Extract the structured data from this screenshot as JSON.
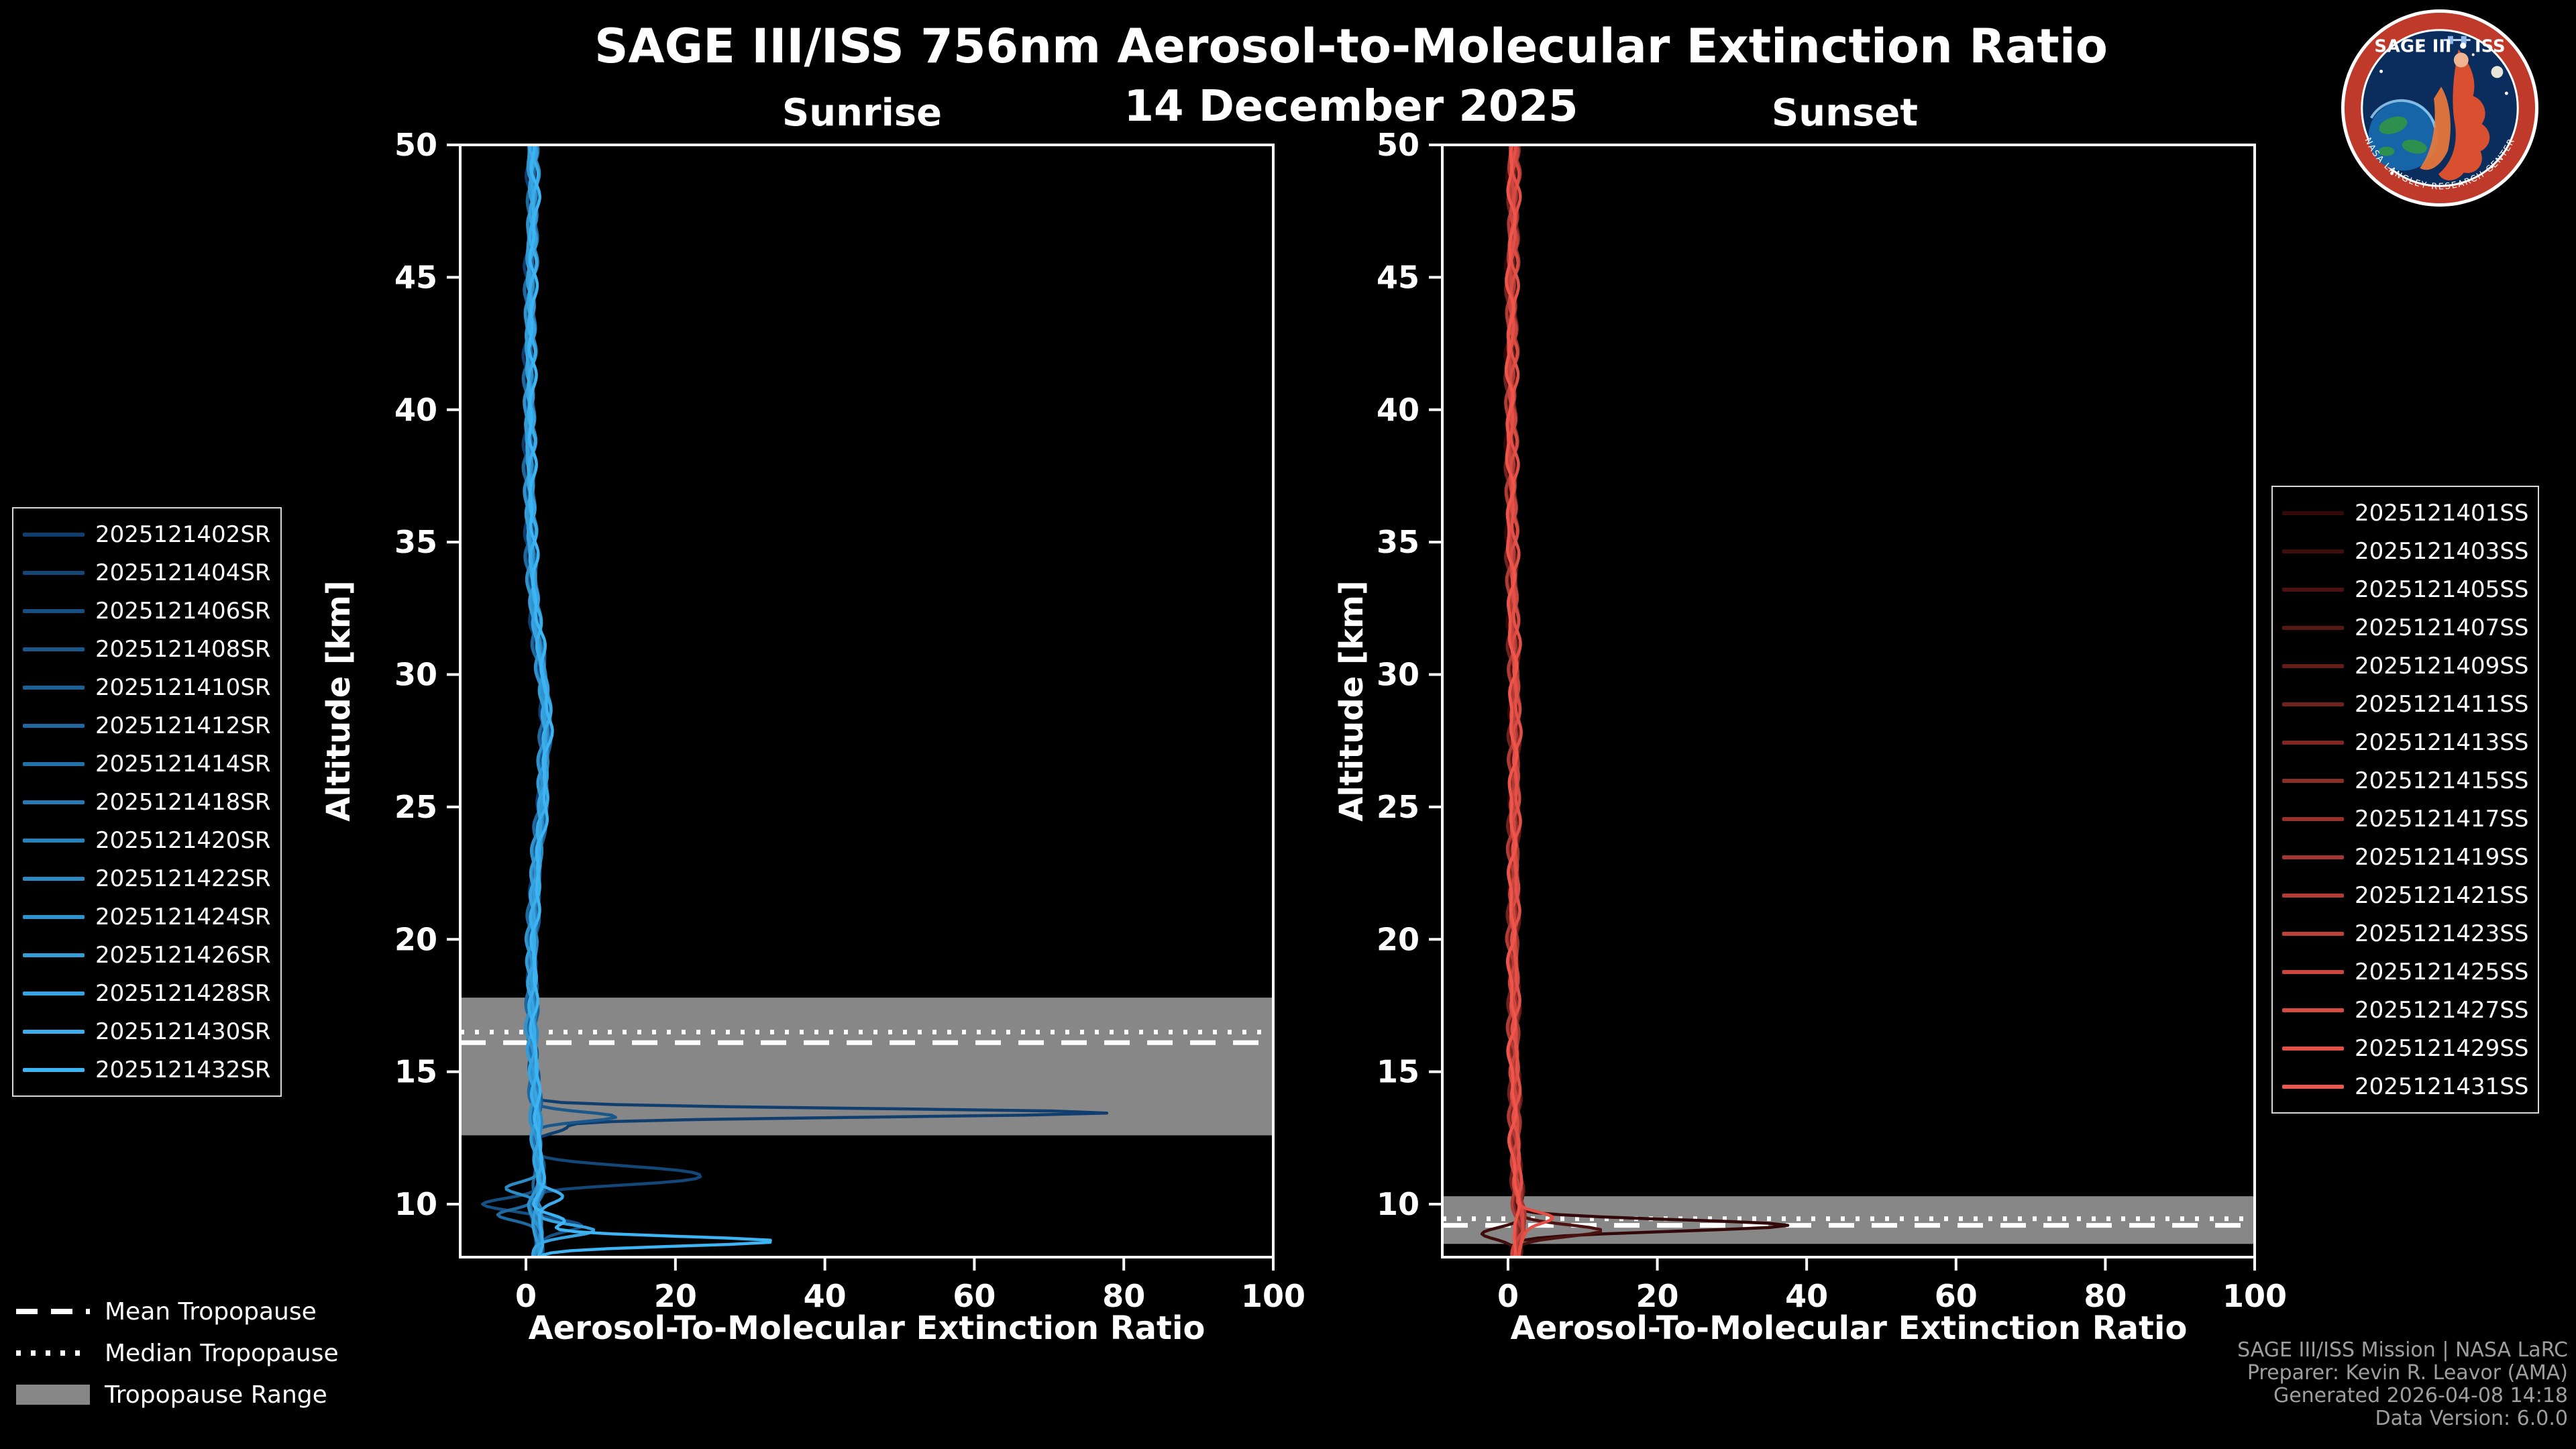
{
  "header": {
    "title": "SAGE III/ISS 756nm Aerosol-to-Molecular Extinction Ratio",
    "subtitle": "14 December 2025"
  },
  "logo": {
    "title_text": "SAGE III • ISS",
    "ring_text": "NASA LANGLEY RESEARCH CENTER",
    "colors": {
      "ring": "#bf3a2b",
      "inner": "#0a2d5e",
      "earth_ocean": "#1565a8",
      "earth_land": "#2f8f4e",
      "figure": "#d8502f"
    }
  },
  "tropopause_legend": {
    "mean_label": "Mean Tropopause",
    "median_label": "Median Tropopause",
    "range_label": "Tropopause Range",
    "range_color": "#878787"
  },
  "footer": {
    "lines": [
      "SAGE III/ISS Mission | NASA LaRC",
      "Preparer: Kevin R. Leavor (AMA)",
      "Generated 2026-04-08 14:18",
      "Data Version: 6.0.0"
    ]
  },
  "chart_data": [
    {
      "type": "line",
      "title": "Sunrise",
      "xlabel": "Aerosol-To-Molecular Extinction Ratio",
      "ylabel": "Altitude [km]",
      "xlim": [
        -8.8,
        100
      ],
      "ylim": [
        8,
        50
      ],
      "xticks": [
        0,
        20,
        40,
        60,
        80,
        100
      ],
      "yticks": [
        10,
        15,
        20,
        25,
        30,
        35,
        40,
        45,
        50
      ],
      "grid": false,
      "legend_position": "left",
      "tropopause": {
        "mean_km": 16.1,
        "median_km": 16.5,
        "range_km": [
          12.6,
          17.8
        ]
      },
      "base_profile": [
        [
          50,
          0.8
        ],
        [
          48,
          1.0
        ],
        [
          46,
          0.7
        ],
        [
          44,
          0.6
        ],
        [
          42,
          0.5
        ],
        [
          40,
          0.5
        ],
        [
          38,
          0.5
        ],
        [
          36,
          0.6
        ],
        [
          34,
          0.8
        ],
        [
          32,
          1.3
        ],
        [
          30,
          2.2
        ],
        [
          29,
          2.6
        ],
        [
          28,
          2.7
        ],
        [
          27,
          2.5
        ],
        [
          26,
          2.3
        ],
        [
          25,
          2.2
        ],
        [
          24,
          1.8
        ],
        [
          23,
          1.5
        ],
        [
          22,
          1.2
        ],
        [
          21,
          1.0
        ],
        [
          20,
          0.9
        ],
        [
          19,
          0.8
        ],
        [
          18,
          0.8
        ],
        [
          17,
          0.8
        ],
        [
          16,
          0.9
        ],
        [
          15,
          1.0
        ],
        [
          14,
          1.2
        ],
        [
          13.5,
          1.4
        ],
        [
          13,
          1.4
        ],
        [
          12.5,
          1.4
        ],
        [
          12,
          1.5
        ],
        [
          11.5,
          1.7
        ],
        [
          11,
          1.8
        ],
        [
          10.5,
          1.6
        ],
        [
          10,
          1.2
        ],
        [
          9.5,
          1.4
        ],
        [
          9,
          1.8
        ],
        [
          8.5,
          1.8
        ],
        [
          8,
          1.4
        ]
      ],
      "series": [
        {
          "name": "2025121402SR",
          "color": "#103E6E",
          "spikes": [
            {
              "alt": 13.45,
              "value": 78,
              "width": 0.22
            },
            {
              "alt": 12.9,
              "value": 6,
              "width": 0.3
            }
          ]
        },
        {
          "name": "2025121404SR",
          "color": "#134778",
          "spikes": [
            {
              "alt": 11.2,
              "value": 21,
              "width": 0.35
            },
            {
              "alt": 10.85,
              "value": 13,
              "width": 0.25
            }
          ]
        },
        {
          "name": "2025121406SR",
          "color": "#164F81",
          "spikes": [
            {
              "alt": 10.0,
              "value": -5.5,
              "width": 0.3
            },
            {
              "alt": 9.2,
              "value": 7,
              "width": 0.3
            }
          ]
        },
        {
          "name": "2025121408SR",
          "color": "#1A588B",
          "spikes": [
            {
              "alt": 13.3,
              "value": 12,
              "width": 0.25
            }
          ]
        },
        {
          "name": "2025121410SR",
          "color": "#1D6094",
          "spikes": []
        },
        {
          "name": "2025121412SR",
          "color": "#20699E",
          "spikes": [
            {
              "alt": 9.6,
              "value": -4,
              "width": 0.3
            }
          ]
        },
        {
          "name": "2025121414SR",
          "color": "#2371A7",
          "spikes": []
        },
        {
          "name": "2025121418SR",
          "color": "#277AB1",
          "spikes": []
        },
        {
          "name": "2025121420SR",
          "color": "#2A82BB",
          "spikes": []
        },
        {
          "name": "2025121422SR",
          "color": "#2D8BC4",
          "spikes": [
            {
              "alt": 10.6,
              "value": -2.5,
              "width": 0.3
            }
          ]
        },
        {
          "name": "2025121424SR",
          "color": "#3093CE",
          "spikes": []
        },
        {
          "name": "2025121426SR",
          "color": "#349CD7",
          "spikes": []
        },
        {
          "name": "2025121428SR",
          "color": "#37A4E1",
          "spikes": [
            {
              "alt": 9.0,
              "value": 9,
              "width": 0.3
            }
          ]
        },
        {
          "name": "2025121430SR",
          "color": "#3AADEA",
          "spikes": [
            {
              "alt": 10.3,
              "value": 5,
              "width": 0.35
            }
          ]
        },
        {
          "name": "2025121432SR",
          "color": "#3DB5F5",
          "spikes": [
            {
              "alt": 8.6,
              "value": 33,
              "width": 0.25
            },
            {
              "alt": 9.4,
              "value": 5,
              "width": 0.3
            }
          ]
        }
      ]
    },
    {
      "type": "line",
      "title": "Sunset",
      "xlabel": "Aerosol-To-Molecular Extinction Ratio",
      "ylabel": "Altitude [km]",
      "xlim": [
        -8.8,
        100
      ],
      "ylim": [
        8,
        50
      ],
      "xticks": [
        0,
        20,
        40,
        60,
        80,
        100
      ],
      "yticks": [
        10,
        15,
        20,
        25,
        30,
        35,
        40,
        45,
        50
      ],
      "grid": false,
      "legend_position": "right",
      "tropopause": {
        "mean_km": 9.2,
        "median_km": 9.45,
        "range_km": [
          8.5,
          10.3
        ]
      },
      "base_profile": [
        [
          50,
          0.7
        ],
        [
          48,
          0.8
        ],
        [
          46,
          0.6
        ],
        [
          44,
          0.5
        ],
        [
          42,
          0.5
        ],
        [
          40,
          0.4
        ],
        [
          38,
          0.5
        ],
        [
          36,
          0.5
        ],
        [
          34,
          0.6
        ],
        [
          32,
          0.7
        ],
        [
          30,
          0.9
        ],
        [
          28,
          0.9
        ],
        [
          26,
          0.9
        ],
        [
          24,
          0.8
        ],
        [
          22,
          0.8
        ],
        [
          20,
          0.7
        ],
        [
          18,
          0.8
        ],
        [
          16,
          0.8
        ],
        [
          14,
          0.9
        ],
        [
          12,
          1.0
        ],
        [
          11,
          1.1
        ],
        [
          10,
          1.4
        ],
        [
          9.5,
          1.6
        ],
        [
          9,
          1.8
        ],
        [
          8.5,
          1.3
        ],
        [
          8,
          1.0
        ]
      ],
      "series": [
        {
          "name": "2025121401SS",
          "color": "#320808",
          "spikes": [
            {
              "alt": 9.2,
              "value": 38,
              "width": 0.3
            }
          ]
        },
        {
          "name": "2025121403SS",
          "color": "#3F0D0C",
          "spikes": [
            {
              "alt": 8.9,
              "value": -3,
              "width": 0.3
            }
          ]
        },
        {
          "name": "2025121405SS",
          "color": "#4B1211",
          "spikes": [
            {
              "alt": 9.0,
              "value": 12,
              "width": 0.3
            }
          ]
        },
        {
          "name": "2025121407SS",
          "color": "#581715",
          "spikes": []
        },
        {
          "name": "2025121409SS",
          "color": "#651D1A",
          "spikes": []
        },
        {
          "name": "2025121411SS",
          "color": "#71221E",
          "spikes": []
        },
        {
          "name": "2025121413SS",
          "color": "#7E2723",
          "spikes": []
        },
        {
          "name": "2025121415SS",
          "color": "#8B2C27",
          "spikes": []
        },
        {
          "name": "2025121417SS",
          "color": "#97312C",
          "spikes": []
        },
        {
          "name": "2025121419SS",
          "color": "#A43630",
          "spikes": []
        },
        {
          "name": "2025121421SS",
          "color": "#B13B35",
          "spikes": []
        },
        {
          "name": "2025121423SS",
          "color": "#BD4139",
          "spikes": []
        },
        {
          "name": "2025121425SS",
          "color": "#CA463E",
          "spikes": []
        },
        {
          "name": "2025121427SS",
          "color": "#D74B42",
          "spikes": []
        },
        {
          "name": "2025121429SS",
          "color": "#E35047",
          "spikes": [
            {
              "alt": 9.5,
              "value": 6,
              "width": 0.3
            }
          ]
        },
        {
          "name": "2025121431SS",
          "color": "#F0554B",
          "spikes": []
        }
      ]
    }
  ]
}
